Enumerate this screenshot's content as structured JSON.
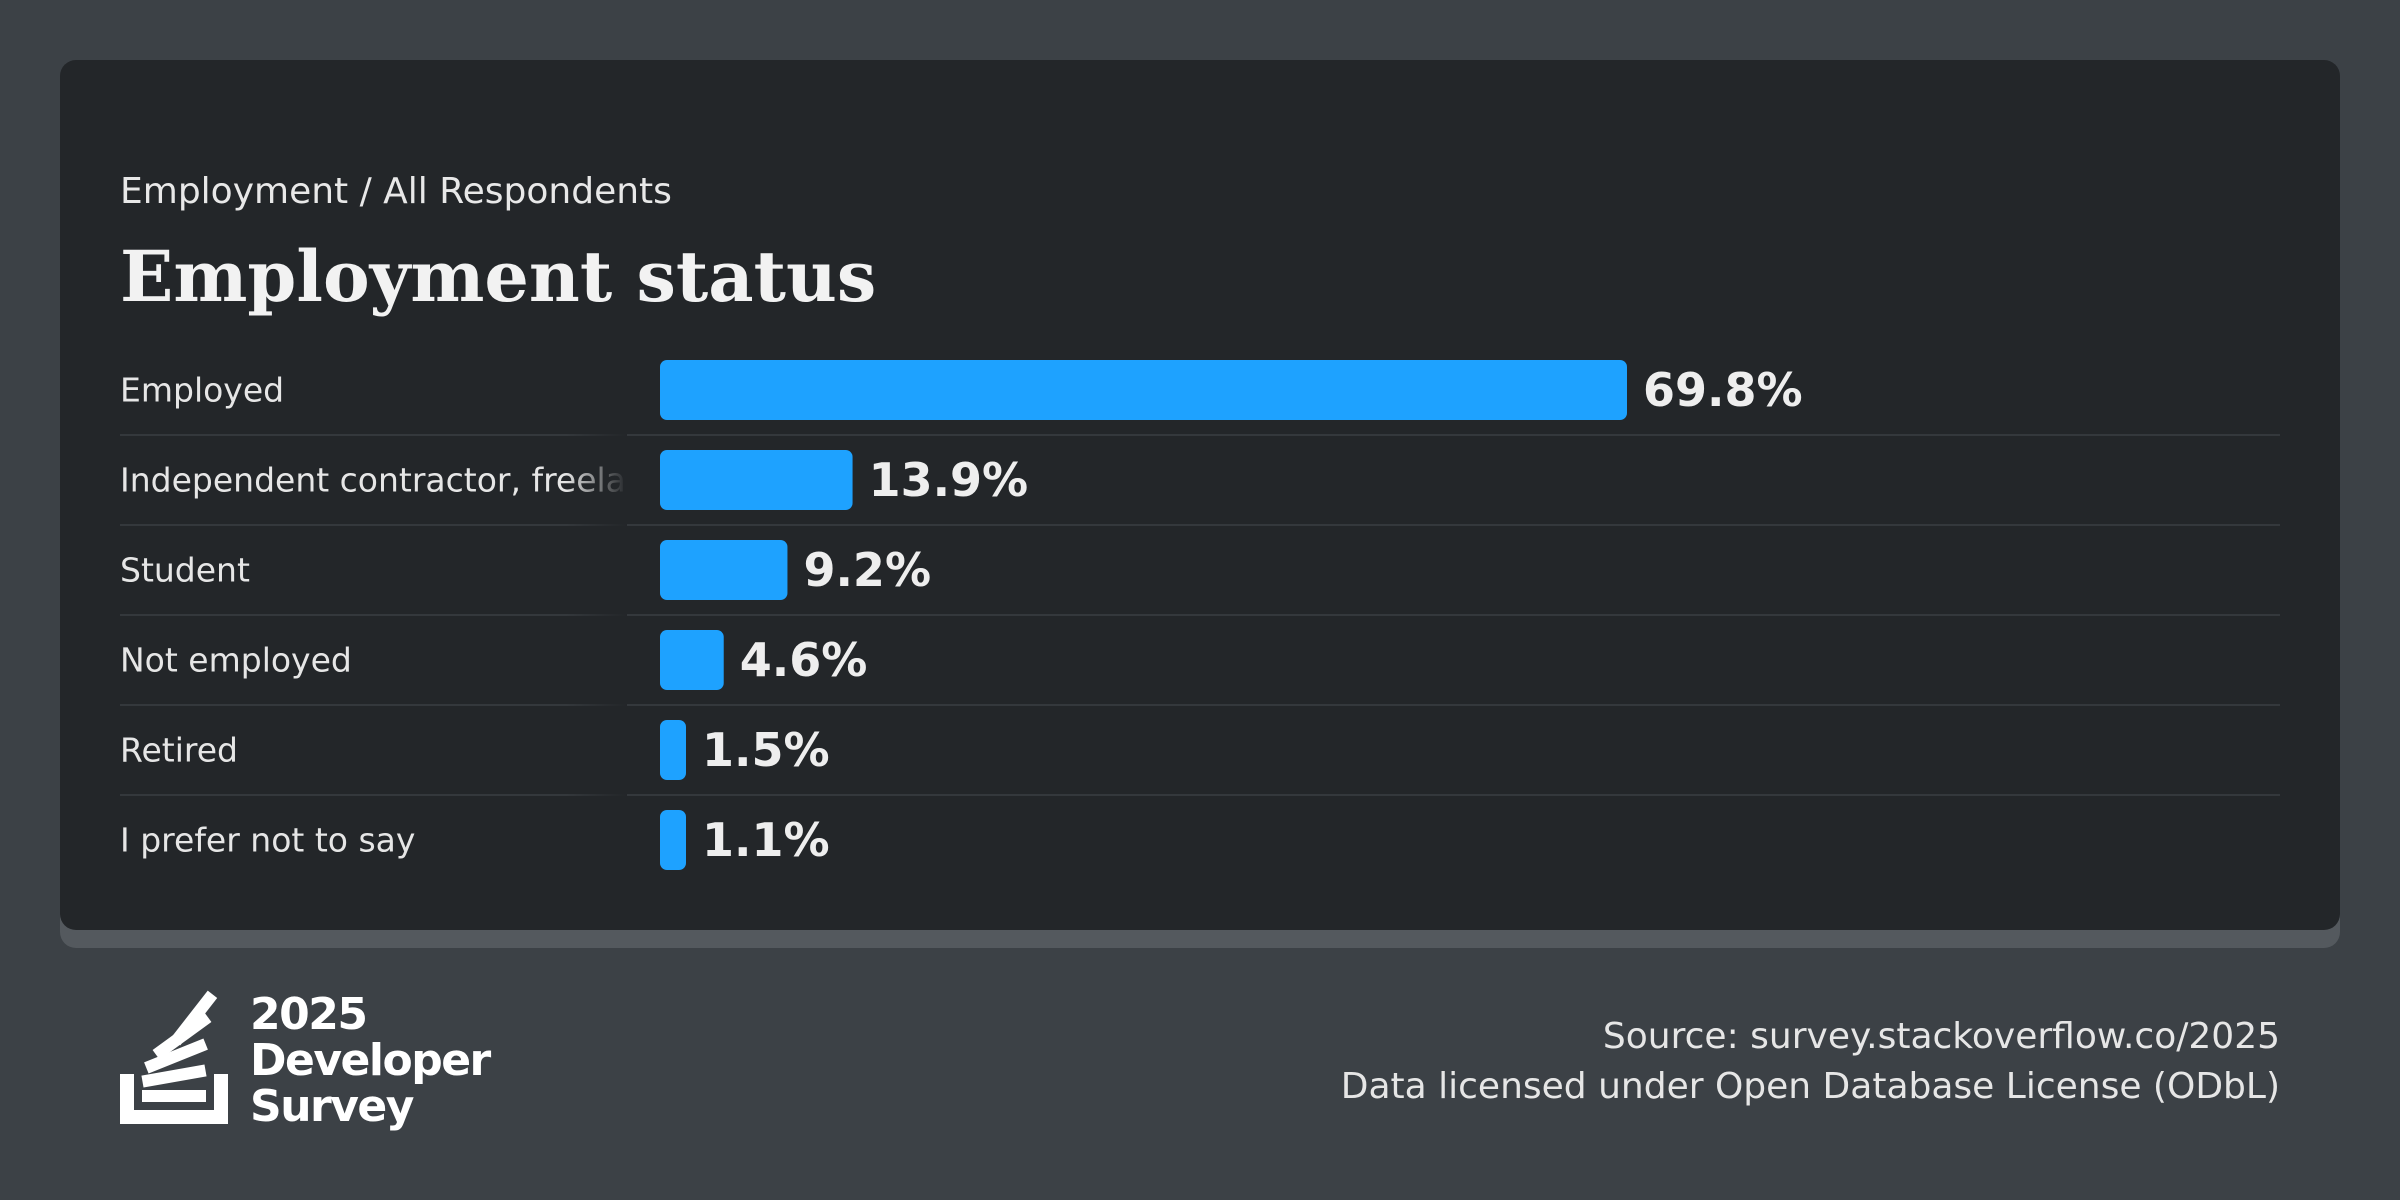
{
  "header": {
    "breadcrumb": "Employment / All Respondents",
    "title": "Employment status"
  },
  "chart_data": {
    "type": "bar",
    "orientation": "horizontal",
    "categories": [
      "Employed",
      "Independent contractor, freelancer, or self-employed",
      "Student",
      "Not employed",
      "Retired",
      "I prefer not to say"
    ],
    "categories_displayed": [
      "Employed",
      "Independent contractor, freela",
      "Student",
      "Not employed",
      "Retired",
      "I prefer not to say"
    ],
    "values": [
      69.8,
      13.9,
      9.2,
      4.6,
      1.5,
      1.1
    ],
    "value_labels": [
      "69.8%",
      "13.9%",
      "9.2%",
      "4.6%",
      "1.5%",
      "1.1%"
    ],
    "unit": "%",
    "bar_color": "#1ea2ff",
    "grid": false,
    "legend": "none"
  },
  "footer": {
    "logo_year": "2025",
    "logo_line1": "Developer",
    "logo_line2": "Survey",
    "logo_icon": "stack-overflow-icon",
    "source_line1": "Source: survey.stackoverflow.co/2025",
    "source_line2": "Data licensed under Open Database License (ODbL)"
  },
  "colors": {
    "background": "#3c4146",
    "card": "#232629",
    "bar": "#1ea2ff",
    "text": "#e8e8e8"
  }
}
